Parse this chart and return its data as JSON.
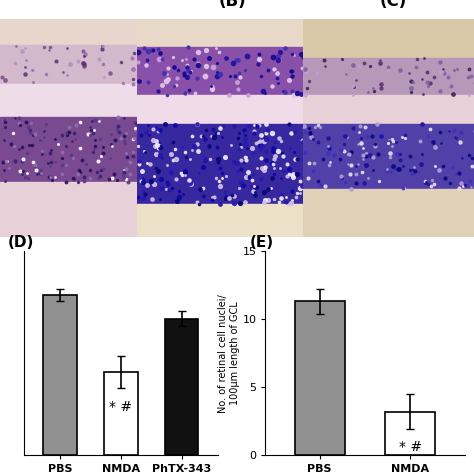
{
  "chart_D": {
    "title": "(D)",
    "categories": [
      "PBS",
      "NMDA",
      "PhTX-343"
    ],
    "values": [
      10.2,
      5.3,
      8.7
    ],
    "errors": [
      0.4,
      1.0,
      0.5
    ],
    "colors": [
      "#909090",
      "#ffffff",
      "#111111"
    ],
    "ylim": [
      0,
      13
    ],
    "yticks": [],
    "annotations": [
      "",
      "* #",
      ""
    ]
  },
  "chart_E": {
    "title": "(E)",
    "ylabel": "No. of retinal cell nuclei/\n100μm length of GCL",
    "categories": [
      "PBS",
      "NMDA"
    ],
    "values": [
      11.3,
      3.2
    ],
    "errors": [
      0.9,
      1.3
    ],
    "colors": [
      "#909090",
      "#ffffff"
    ],
    "ylim": [
      0,
      15
    ],
    "yticks": [
      0,
      5,
      10,
      15
    ],
    "annotations": [
      "",
      "* #"
    ]
  },
  "bg_color": "#ffffff",
  "bar_edge_color": "#000000",
  "bar_linewidth": 1.2,
  "font_color": "#000000",
  "tick_fontsize": 8,
  "annotation_fontsize": 10,
  "title_fontsize": 11,
  "panel_label_fontsize": 12
}
